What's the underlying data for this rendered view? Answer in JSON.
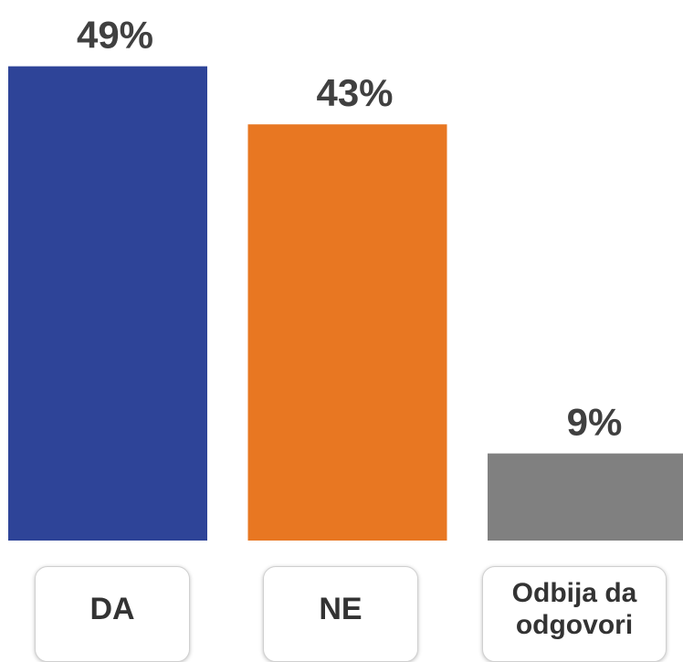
{
  "chart_data": {
    "type": "bar",
    "categories": [
      "DA",
      "NE",
      "Odbija da odgovori"
    ],
    "values": [
      49,
      43,
      9
    ],
    "value_labels": [
      "49%",
      "43%",
      "9%"
    ],
    "colors": [
      "#2e4498",
      "#e87722",
      "#808080"
    ]
  }
}
